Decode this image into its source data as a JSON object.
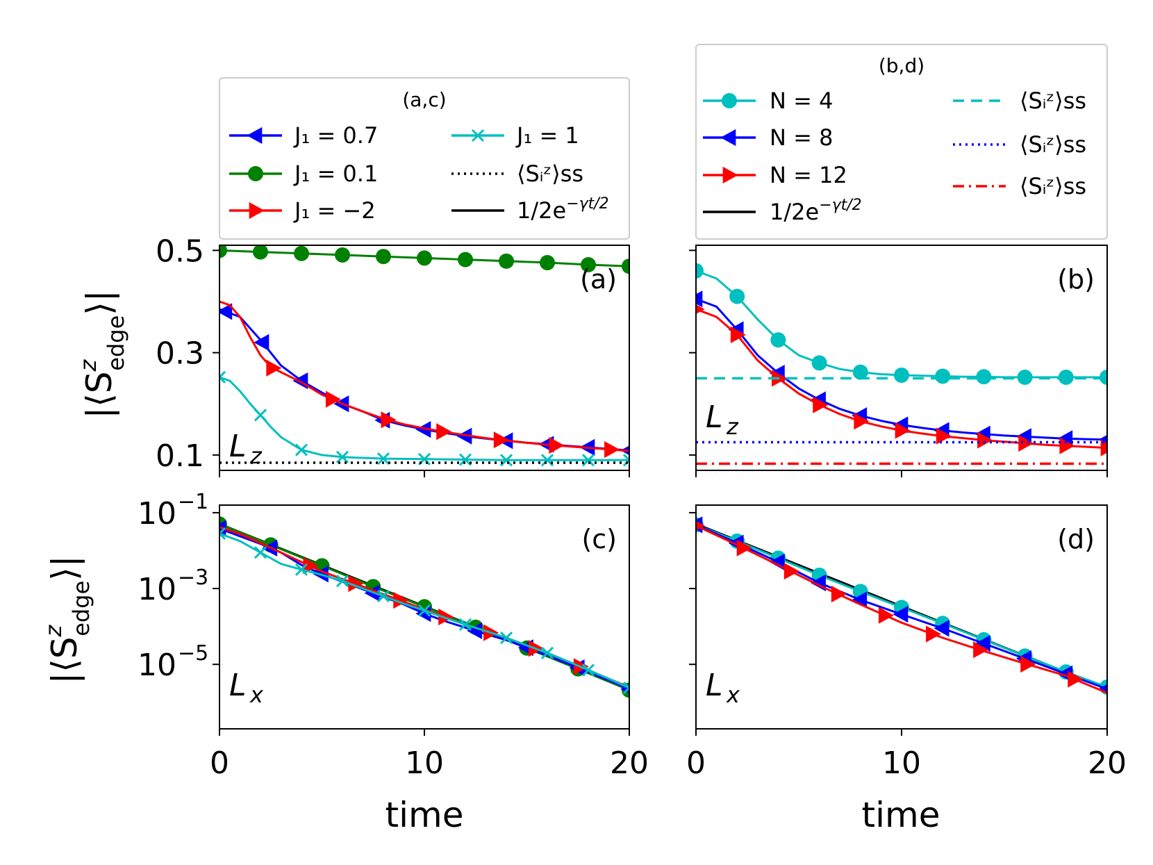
{
  "figure": {
    "x_axis_label": "time",
    "y_axis_label_main": "|⟨S",
    "y_axis_label_sup": "z",
    "y_axis_label_sub": "edge",
    "y_axis_label_end": "⟩|"
  },
  "legend_ac": {
    "title": "(a,c)",
    "entries": [
      {
        "label": "J₁ = 0.7",
        "style": "blue-triangle-left"
      },
      {
        "label": "J₁ = 0.1",
        "style": "green-circle"
      },
      {
        "label": "J₁ = −2",
        "style": "red-triangle-right"
      },
      {
        "label": "J₁ = 1",
        "style": "cyan-x"
      },
      {
        "label": "⟨Sᵢᶻ⟩ss",
        "style": "black-dotted"
      },
      {
        "label": "1/2e^{−γt/2}",
        "style": "black-solid"
      }
    ]
  },
  "legend_bd": {
    "title": "(b,d)",
    "entries": [
      {
        "label": "N = 4",
        "style": "cyan-circle"
      },
      {
        "label": "N = 8",
        "style": "blue-triangle-left"
      },
      {
        "label": "N = 12",
        "style": "red-triangle-right"
      },
      {
        "label": "1/2e^{−γt/2}",
        "style": "black-solid"
      },
      {
        "label": "⟨Sᵢᶻ⟩ss",
        "style": "cyan-dashed"
      },
      {
        "label": "⟨Sᵢᶻ⟩ss",
        "style": "blue-dotted"
      },
      {
        "label": "⟨Sᵢᶻ⟩ss",
        "style": "red-dashdot"
      }
    ]
  },
  "colors": {
    "blue": "#0000ff",
    "green": "#008000",
    "red": "#ff0000",
    "cyan": "#00bfbf",
    "black": "#000000"
  },
  "chart_data": [
    {
      "panel": "(a)",
      "type": "line",
      "operator_label": "L",
      "operator_sub": "z",
      "xlim": [
        0,
        20
      ],
      "ylim": [
        0.07,
        0.51
      ],
      "yscale": "linear",
      "yticks": [
        0.1,
        0.3,
        0.5
      ],
      "ytick_labels": [
        "0.1",
        "0.3",
        "0.5"
      ],
      "xticks": [
        0,
        10,
        20
      ],
      "series": [
        {
          "name": "J₁ = 0.1",
          "color": "green",
          "marker": "circle",
          "x": [
            0,
            2,
            4,
            6,
            8,
            10,
            12,
            14,
            16,
            18,
            20
          ],
          "y": [
            0.5,
            0.497,
            0.494,
            0.491,
            0.488,
            0.485,
            0.482,
            0.479,
            0.476,
            0.472,
            0.469
          ],
          "markers_x": [
            0,
            2,
            4,
            6,
            8,
            10,
            12,
            14,
            16,
            18,
            20
          ]
        },
        {
          "name": "J₁ = 0.7",
          "color": "blue",
          "marker": "triangle-left",
          "x": [
            0,
            1,
            2,
            3,
            4,
            5,
            6,
            7,
            8,
            9,
            10,
            11,
            12,
            13,
            14,
            15,
            16,
            17,
            18,
            19,
            20
          ],
          "y": [
            0.385,
            0.37,
            0.325,
            0.275,
            0.245,
            0.222,
            0.2,
            0.185,
            0.168,
            0.158,
            0.15,
            0.143,
            0.137,
            0.132,
            0.128,
            0.124,
            0.121,
            0.118,
            0.115,
            0.112,
            0.109
          ],
          "markers_x": [
            0.3,
            2.1,
            4,
            6,
            8,
            10,
            12,
            14,
            16,
            18,
            20
          ]
        },
        {
          "name": "J₁ = −2",
          "color": "red",
          "marker": "triangle-right",
          "x": [
            0,
            0.5,
            1,
            1.5,
            2,
            2.5,
            3,
            4,
            5,
            6,
            7,
            8,
            9,
            10,
            11,
            12,
            13,
            14,
            15,
            16,
            17,
            18,
            19,
            20
          ],
          "y": [
            0.4,
            0.393,
            0.37,
            0.33,
            0.295,
            0.272,
            0.262,
            0.242,
            0.218,
            0.2,
            0.185,
            0.171,
            0.16,
            0.152,
            0.145,
            0.139,
            0.133,
            0.128,
            0.124,
            0.12,
            0.117,
            0.114,
            0.111,
            0.108
          ],
          "markers_x": [
            2.6,
            5.5,
            8.2,
            10.9,
            13.7,
            16.4,
            19.1
          ]
        },
        {
          "name": "J₁ = 1",
          "color": "cyan",
          "marker": "x",
          "x": [
            0,
            0.5,
            1,
            1.5,
            2,
            2.5,
            3,
            4,
            5,
            6,
            8,
            10,
            12,
            14,
            16,
            18,
            20
          ],
          "y": [
            0.252,
            0.245,
            0.225,
            0.2,
            0.178,
            0.155,
            0.135,
            0.11,
            0.1,
            0.096,
            0.093,
            0.092,
            0.091,
            0.09,
            0.09,
            0.09,
            0.09
          ],
          "markers_x": [
            0,
            2,
            4,
            6,
            8,
            10,
            12,
            14,
            16,
            18,
            20
          ]
        },
        {
          "name": "⟨Sᵢᶻ⟩ss",
          "color": "black",
          "linestyle": "dotted",
          "x": [
            0,
            20
          ],
          "y": [
            0.085,
            0.085
          ]
        }
      ]
    },
    {
      "panel": "(b)",
      "type": "line",
      "operator_label": "L",
      "operator_sub": "z",
      "xlim": [
        0,
        20
      ],
      "ylim": [
        0.07,
        0.51
      ],
      "yscale": "linear",
      "xticks": [
        0,
        10,
        20
      ],
      "yticks_unlabeled": [
        0.1,
        0.3,
        0.5
      ],
      "series": [
        {
          "name": "N = 4",
          "color": "cyan",
          "marker": "circle",
          "x": [
            0,
            1,
            2,
            3,
            4,
            5,
            6,
            7,
            8,
            9,
            10,
            11,
            12,
            13,
            14,
            15,
            16,
            17,
            18,
            19,
            20
          ],
          "y": [
            0.46,
            0.445,
            0.41,
            0.365,
            0.325,
            0.295,
            0.28,
            0.268,
            0.262,
            0.258,
            0.256,
            0.255,
            0.254,
            0.253,
            0.253,
            0.252,
            0.252,
            0.252,
            0.252,
            0.252,
            0.252
          ],
          "markers_x": [
            0,
            2,
            4,
            6,
            8,
            10,
            12,
            14,
            16,
            18,
            20
          ]
        },
        {
          "name": "N = 8",
          "color": "blue",
          "marker": "triangle-left",
          "x": [
            0,
            1,
            2,
            3,
            4,
            5,
            6,
            7,
            8,
            9,
            10,
            11,
            12,
            13,
            14,
            15,
            16,
            17,
            18,
            19,
            20
          ],
          "y": [
            0.405,
            0.39,
            0.345,
            0.295,
            0.26,
            0.23,
            0.208,
            0.19,
            0.177,
            0.167,
            0.159,
            0.153,
            0.148,
            0.144,
            0.141,
            0.138,
            0.136,
            0.134,
            0.132,
            0.131,
            0.13
          ],
          "markers_x": [
            0,
            2,
            4,
            6,
            8,
            10,
            12,
            14,
            16,
            18,
            20
          ]
        },
        {
          "name": "N = 12",
          "color": "red",
          "marker": "triangle-right",
          "x": [
            0,
            1,
            2,
            3,
            4,
            5,
            6,
            7,
            8,
            9,
            10,
            11,
            12,
            13,
            14,
            15,
            16,
            17,
            18,
            19,
            20
          ],
          "y": [
            0.385,
            0.37,
            0.335,
            0.285,
            0.25,
            0.22,
            0.198,
            0.18,
            0.166,
            0.156,
            0.148,
            0.142,
            0.137,
            0.133,
            0.129,
            0.126,
            0.123,
            0.12,
            0.118,
            0.116,
            0.114
          ],
          "markers_x": [
            0,
            2,
            4,
            6,
            8,
            10,
            12,
            14,
            16,
            18,
            20
          ]
        },
        {
          "name": "⟨Sᵢᶻ⟩ss",
          "color": "cyan",
          "linestyle": "dashed",
          "x": [
            0,
            20
          ],
          "y": [
            0.25,
            0.25
          ]
        },
        {
          "name": "⟨Sᵢᶻ⟩ss",
          "color": "blue",
          "linestyle": "dotted",
          "x": [
            0,
            20
          ],
          "y": [
            0.125,
            0.125
          ]
        },
        {
          "name": "⟨Sᵢᶻ⟩ss",
          "color": "red",
          "linestyle": "dashdot",
          "x": [
            0,
            20
          ],
          "y": [
            0.083,
            0.083
          ]
        }
      ]
    },
    {
      "panel": "(c)",
      "type": "line",
      "operator_label": "L",
      "operator_sub": "x",
      "xlim": [
        0,
        20
      ],
      "ylim_log10": [
        -6.7,
        -0.8
      ],
      "yscale": "log",
      "yticks_log10": [
        -1,
        -3,
        -5
      ],
      "ytick_labels": [
        "10",
        "10",
        "10"
      ],
      "ytick_exponents": [
        "−1",
        "−3",
        "−5"
      ],
      "xticks": [
        0,
        10,
        20
      ],
      "xtick_labels": [
        "0",
        "10",
        "20"
      ],
      "series": [
        {
          "name": "1/2e^{−γt/2}",
          "color": "black",
          "linestyle": "solid",
          "x": [
            0,
            20
          ],
          "log10y": [
            -1.301,
            -5.644
          ]
        },
        {
          "name": "J₁ = 0.1",
          "color": "green",
          "marker": "circle",
          "x": [
            0,
            2.5,
            5,
            7.5,
            10,
            12.5,
            15,
            17.5,
            20
          ],
          "log10y": [
            -1.301,
            -1.85,
            -2.4,
            -2.95,
            -3.48,
            -4.02,
            -4.57,
            -5.12,
            -5.68
          ],
          "markers_x": [
            0,
            2.5,
            5,
            7.5,
            10,
            12.5,
            15,
            17.5,
            20
          ]
        },
        {
          "name": "J₁ = 0.7",
          "color": "blue",
          "marker": "triangle-left",
          "x": [
            0,
            1,
            2,
            3,
            4,
            5,
            6,
            7,
            8,
            9,
            10,
            11,
            12,
            13,
            14,
            15,
            16,
            17,
            18,
            19,
            20
          ],
          "log10y": [
            -1.42,
            -1.62,
            -1.82,
            -2.05,
            -2.38,
            -2.62,
            -2.82,
            -3.02,
            -3.22,
            -3.42,
            -3.66,
            -3.86,
            -4.03,
            -4.2,
            -4.36,
            -4.56,
            -4.76,
            -4.98,
            -5.2,
            -5.42,
            -5.65
          ],
          "markers_x": [
            0,
            2.5,
            5,
            7.5,
            10,
            12.5,
            15,
            17.5,
            20
          ]
        },
        {
          "name": "J₁ = −2",
          "color": "red",
          "marker": "triangle-right",
          "x": [
            0,
            1,
            2,
            3,
            4,
            5,
            6,
            7,
            8,
            9,
            10,
            11,
            12,
            13,
            14,
            15,
            16,
            17,
            18,
            19,
            20
          ],
          "log10y": [
            -1.38,
            -1.56,
            -1.8,
            -2.05,
            -2.3,
            -2.55,
            -2.75,
            -2.95,
            -3.15,
            -3.35,
            -3.55,
            -3.75,
            -3.95,
            -4.13,
            -4.3,
            -4.5,
            -4.7,
            -4.92,
            -5.15,
            -5.38,
            -5.6
          ],
          "markers_x": [
            4.4,
            6.6,
            8.8,
            11,
            13.2,
            15.4,
            17.6
          ]
        },
        {
          "name": "J₁ = 1",
          "color": "cyan",
          "marker": "x",
          "x": [
            0,
            1,
            2,
            3,
            4,
            5,
            6,
            7,
            8,
            9,
            10,
            11,
            12,
            13,
            14,
            15,
            16,
            17,
            18,
            19,
            20
          ],
          "log10y": [
            -1.55,
            -1.75,
            -2.05,
            -2.35,
            -2.5,
            -2.64,
            -2.8,
            -3.0,
            -3.2,
            -3.4,
            -3.58,
            -3.77,
            -3.95,
            -4.12,
            -4.3,
            -4.5,
            -4.7,
            -4.92,
            -5.15,
            -5.38,
            -5.62
          ],
          "markers_x": [
            0,
            2,
            4,
            6,
            8,
            10,
            12,
            14,
            16,
            18,
            20
          ]
        }
      ]
    },
    {
      "panel": "(d)",
      "type": "line",
      "operator_label": "L",
      "operator_sub": "x",
      "xlim": [
        0,
        20
      ],
      "ylim_log10": [
        -6.7,
        -0.8
      ],
      "yscale": "log",
      "yticks_log10_unlabeled": [
        -1,
        -3,
        -5
      ],
      "xticks": [
        0,
        10,
        20
      ],
      "xtick_labels": [
        "0",
        "10",
        "20"
      ],
      "series": [
        {
          "name": "1/2e^{−γt/2}",
          "color": "black",
          "linestyle": "solid",
          "x": [
            0,
            20
          ],
          "log10y": [
            -1.301,
            -5.644
          ]
        },
        {
          "name": "N = 4",
          "color": "cyan",
          "marker": "circle",
          "x": [
            0,
            2,
            4,
            6,
            8,
            10,
            12,
            14,
            16,
            18,
            20
          ],
          "log10y": [
            -1.32,
            -1.75,
            -2.2,
            -2.65,
            -3.08,
            -3.5,
            -3.92,
            -4.35,
            -4.78,
            -5.2,
            -5.6
          ],
          "markers_x": [
            0,
            2,
            4,
            6,
            8,
            10,
            12,
            14,
            16,
            18,
            20
          ]
        },
        {
          "name": "N = 8",
          "color": "blue",
          "marker": "triangle-left",
          "x": [
            0,
            2,
            4,
            6,
            8,
            10,
            12,
            14,
            16,
            18,
            20
          ],
          "log10y": [
            -1.32,
            -1.8,
            -2.3,
            -2.85,
            -3.3,
            -3.68,
            -4.05,
            -4.45,
            -4.85,
            -5.25,
            -5.65
          ],
          "markers_x": [
            0,
            2,
            4,
            6,
            8,
            10,
            12,
            14,
            16,
            18,
            20
          ]
        },
        {
          "name": "N = 12",
          "color": "red",
          "marker": "triangle-right",
          "x": [
            0,
            2,
            4,
            6,
            8,
            10,
            12,
            14,
            16,
            18,
            20
          ],
          "log10y": [
            -1.34,
            -1.85,
            -2.38,
            -2.92,
            -3.42,
            -3.9,
            -4.3,
            -4.65,
            -4.98,
            -5.3,
            -5.75
          ],
          "markers_x": [
            0,
            2.3,
            4.6,
            6.9,
            9.2,
            11.5,
            13.8,
            16.1,
            18.4
          ]
        }
      ]
    }
  ]
}
